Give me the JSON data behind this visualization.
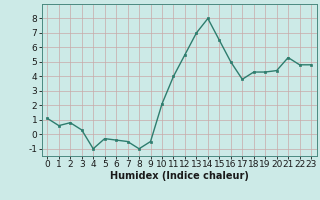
{
  "x": [
    0,
    1,
    2,
    3,
    4,
    5,
    6,
    7,
    8,
    9,
    10,
    11,
    12,
    13,
    14,
    15,
    16,
    17,
    18,
    19,
    20,
    21,
    22,
    23
  ],
  "y": [
    1.1,
    0.6,
    0.8,
    0.3,
    -1.0,
    -0.3,
    -0.4,
    -0.5,
    -1.0,
    -0.5,
    2.1,
    4.0,
    5.5,
    7.0,
    8.0,
    6.5,
    5.0,
    3.8,
    4.3,
    4.3,
    4.4,
    5.3,
    4.8,
    4.8
  ],
  "line_color": "#2e7d6e",
  "marker_color": "#2e7d6e",
  "bg_color": "#cceae7",
  "grid_color_major": "#b8d8d5",
  "grid_color_minor": "#ddf0ee",
  "xlabel": "Humidex (Indice chaleur)",
  "xlabel_fontsize": 7,
  "tick_fontsize": 6.5,
  "xlim": [
    -0.5,
    23.5
  ],
  "ylim": [
    -1.5,
    9.0
  ],
  "yticks": [
    -1,
    0,
    1,
    2,
    3,
    4,
    5,
    6,
    7,
    8
  ],
  "xticks": [
    0,
    1,
    2,
    3,
    4,
    5,
    6,
    7,
    8,
    9,
    10,
    11,
    12,
    13,
    14,
    15,
    16,
    17,
    18,
    19,
    20,
    21,
    22,
    23
  ]
}
